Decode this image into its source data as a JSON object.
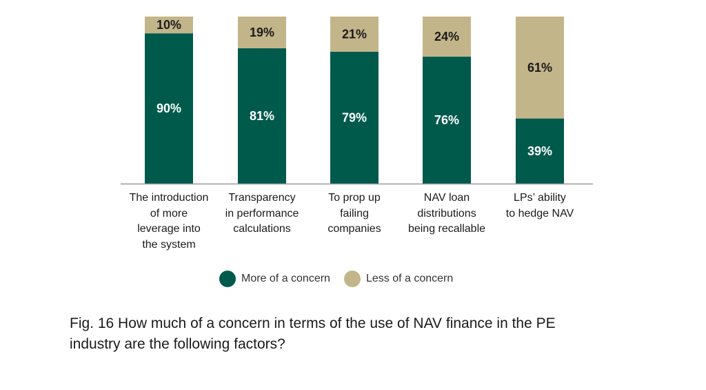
{
  "chart_data": {
    "type": "bar",
    "stacked": true,
    "categories": [
      [
        "The introduction",
        "of more",
        "leverage into",
        "the system"
      ],
      [
        "Transparency",
        "in performance",
        "calculations"
      ],
      [
        "To prop up",
        "failing",
        "companies"
      ],
      [
        "NAV loan",
        "distributions",
        "being recallable"
      ],
      [
        "LPs’ ability",
        "to hedge NAV"
      ]
    ],
    "series": [
      {
        "name": "More of a concern",
        "values": [
          90,
          81,
          79,
          76,
          39
        ],
        "labels": [
          "90%",
          "81%",
          "79%",
          "76%",
          "39%"
        ],
        "color": "#005a4c",
        "label_color": "#ffffff"
      },
      {
        "name": "Less of a concern",
        "values": [
          10,
          19,
          21,
          24,
          61
        ],
        "labels": [
          "10%",
          "19%",
          "21%",
          "24%",
          "61%"
        ],
        "color": "#c3b58a",
        "label_color": "#1a1a1a"
      }
    ],
    "ylim": [
      0,
      100
    ],
    "grid": false,
    "legend_position": "bottom-center"
  },
  "caption": [
    "Fig. 16 How much of a concern in terms of the use of NAV finance in the PE",
    "industry are the following factors?"
  ],
  "colors": {
    "axis": "#999999",
    "text": "#1a1a1a"
  }
}
